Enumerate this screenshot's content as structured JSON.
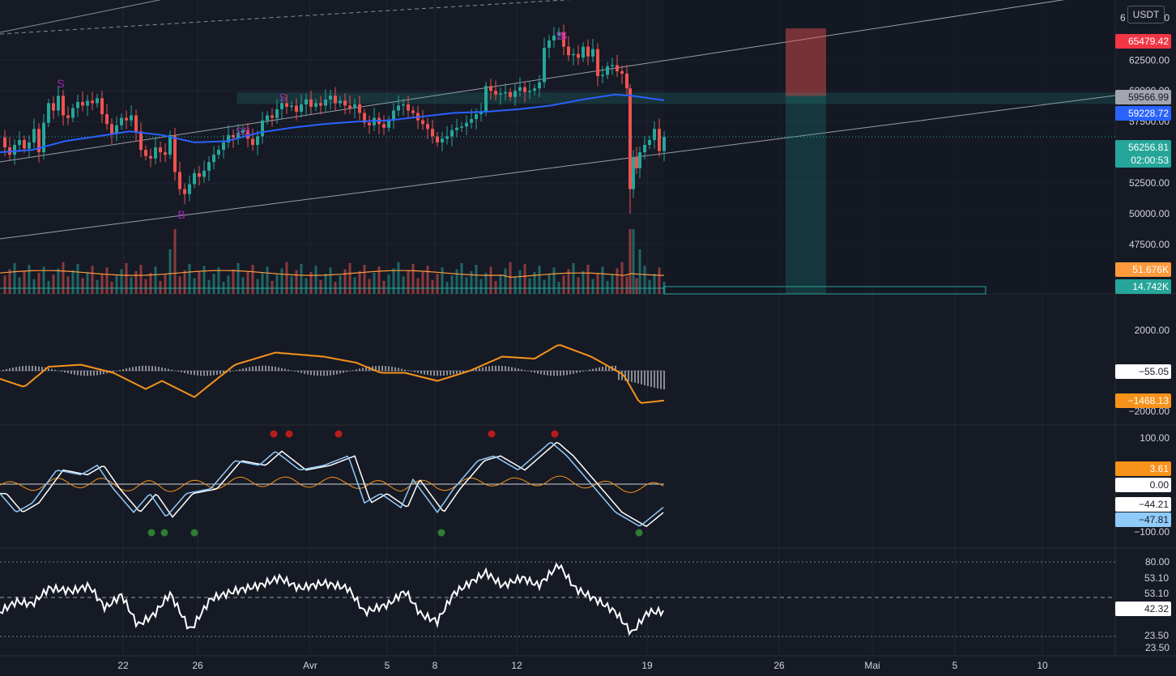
{
  "symbol_quote": "USDT",
  "colors": {
    "background": "#161a25",
    "up": "#26a69a",
    "down": "#ef5350",
    "ma": "#2962ff",
    "volume_ma": "#ff9a3c",
    "macd_signal": "#f7931a",
    "stoch_k": "#90caf9",
    "stoch_d": "#f7931a",
    "rsi": "#ffffff",
    "zone": "#26a69a",
    "label_dark": "#a3a6af"
  },
  "price_tags": {
    "top_partial": "6",
    "top_partial_suffix": "0",
    "stop": "65479.42",
    "gray": "59566.99",
    "ma": "59228.72",
    "last_price": "56256.81",
    "countdown": "02:00:53",
    "vol_ma": "51.676K",
    "vol_last": "14.742K",
    "macd_hist": "−55.05",
    "macd_line": "−1468.13",
    "stoch_signal": "3.61",
    "stoch_zero": "0.00",
    "stoch_d_val": "−44.21",
    "stoch_k_val": "−47.81",
    "rsi_a": "53.10",
    "rsi_b": "53.10",
    "rsi_c": "42.32",
    "rsi_d": "23.50"
  },
  "price_axis": [
    "62500.00",
    "60000.00",
    "57500.00",
    "52500.00",
    "50000.00",
    "47500.00"
  ],
  "macd_axis": [
    "2000.00",
    "−2000.00"
  ],
  "stoch_axis": [
    "100.00",
    "−100.00"
  ],
  "rsi_axis": [
    "80.00",
    "23.50"
  ],
  "time_axis": [
    "22",
    "26",
    "Avr",
    "5",
    "8",
    "12",
    "19",
    "26",
    "Mai",
    "5",
    "10"
  ],
  "markers": {
    "sell": "S",
    "double_sell": "SS",
    "buy": "B"
  },
  "chart_data": {
    "type": "candlestick",
    "title": "",
    "ylim": [
      44000,
      67000
    ],
    "price_points": [
      [
        0,
        56200
      ],
      [
        6,
        55400
      ],
      [
        12,
        54800
      ],
      [
        18,
        55600
      ],
      [
        24,
        56000
      ],
      [
        30,
        55300
      ],
      [
        36,
        55800
      ],
      [
        42,
        56900
      ],
      [
        48,
        55000
      ],
      [
        54,
        57400
      ],
      [
        60,
        59000
      ],
      [
        66,
        58400
      ],
      [
        72,
        59600
      ],
      [
        78,
        58000
      ],
      [
        84,
        57800
      ],
      [
        90,
        58600
      ],
      [
        96,
        59100
      ],
      [
        102,
        58800
      ],
      [
        108,
        59200
      ],
      [
        114,
        59000
      ],
      [
        120,
        59400
      ],
      [
        126,
        58100
      ],
      [
        132,
        57300
      ],
      [
        138,
        56500
      ],
      [
        144,
        57200
      ],
      [
        150,
        57800
      ],
      [
        156,
        57600
      ],
      [
        162,
        58000
      ],
      [
        168,
        56700
      ],
      [
        174,
        55200
      ],
      [
        180,
        54700
      ],
      [
        186,
        54500
      ],
      [
        192,
        55400
      ],
      [
        198,
        55000
      ],
      [
        204,
        54800
      ],
      [
        210,
        56400
      ],
      [
        216,
        53400
      ],
      [
        222,
        52000
      ],
      [
        228,
        51600
      ],
      [
        234,
        52400
      ],
      [
        240,
        53300
      ],
      [
        246,
        53000
      ],
      [
        252,
        53500
      ],
      [
        258,
        54200
      ],
      [
        264,
        54800
      ],
      [
        270,
        55200
      ],
      [
        276,
        55800
      ],
      [
        282,
        56400
      ],
      [
        288,
        56200
      ],
      [
        294,
        56600
      ],
      [
        300,
        56800
      ],
      [
        306,
        56100
      ],
      [
        312,
        55600
      ],
      [
        318,
        56300
      ],
      [
        324,
        57600
      ],
      [
        330,
        58000
      ],
      [
        336,
        57800
      ],
      [
        342,
        58500
      ],
      [
        348,
        59000
      ],
      [
        354,
        58700
      ],
      [
        360,
        58800
      ],
      [
        366,
        58300
      ],
      [
        372,
        58900
      ],
      [
        378,
        59300
      ],
      [
        384,
        58700
      ],
      [
        390,
        59000
      ],
      [
        396,
        58800
      ],
      [
        402,
        59300
      ],
      [
        408,
        59600
      ],
      [
        414,
        59000
      ],
      [
        420,
        59200
      ],
      [
        426,
        58800
      ],
      [
        432,
        58600
      ],
      [
        438,
        58900
      ],
      [
        444,
        58200
      ],
      [
        450,
        57400
      ],
      [
        456,
        57200
      ],
      [
        462,
        57800
      ],
      [
        468,
        57300
      ],
      [
        474,
        57000
      ],
      [
        480,
        57600
      ],
      [
        486,
        58400
      ],
      [
        492,
        58800
      ],
      [
        498,
        58900
      ],
      [
        504,
        58400
      ],
      [
        510,
        58200
      ],
      [
        516,
        57600
      ],
      [
        522,
        57300
      ],
      [
        528,
        56900
      ],
      [
        534,
        56300
      ],
      [
        540,
        55800
      ],
      [
        546,
        56100
      ],
      [
        552,
        56300
      ],
      [
        558,
        56800
      ],
      [
        564,
        57000
      ],
      [
        570,
        57100
      ],
      [
        576,
        57400
      ],
      [
        582,
        57700
      ],
      [
        588,
        58100
      ],
      [
        594,
        58300
      ],
      [
        600,
        60400
      ],
      [
        606,
        60000
      ],
      [
        612,
        59700
      ],
      [
        618,
        59800
      ],
      [
        624,
        59900
      ],
      [
        630,
        59500
      ],
      [
        636,
        60000
      ],
      [
        642,
        60300
      ],
      [
        648,
        59900
      ],
      [
        654,
        60000
      ],
      [
        660,
        60200
      ],
      [
        666,
        60700
      ],
      [
        672,
        63500
      ],
      [
        678,
        64100
      ],
      [
        684,
        64500
      ],
      [
        690,
        64800
      ],
      [
        696,
        63600
      ],
      [
        702,
        62900
      ],
      [
        708,
        63000
      ],
      [
        714,
        62700
      ],
      [
        720,
        63600
      ],
      [
        726,
        62800
      ],
      [
        732,
        63400
      ],
      [
        738,
        61200
      ],
      [
        744,
        61300
      ],
      [
        750,
        62000
      ],
      [
        756,
        62100
      ],
      [
        762,
        61600
      ],
      [
        768,
        61400
      ],
      [
        774,
        60200
      ],
      [
        778,
        52000
      ],
      [
        782,
        54600
      ],
      [
        786,
        53700
      ],
      [
        790,
        55000
      ],
      [
        796,
        55600
      ],
      [
        802,
        56000
      ],
      [
        808,
        56900
      ],
      [
        814,
        55100
      ],
      [
        820,
        56256
      ]
    ],
    "ma_points": [
      [
        0,
        55000
      ],
      [
        40,
        55200
      ],
      [
        80,
        55900
      ],
      [
        120,
        56300
      ],
      [
        160,
        56700
      ],
      [
        200,
        56400
      ],
      [
        240,
        55800
      ],
      [
        280,
        55900
      ],
      [
        320,
        56600
      ],
      [
        360,
        57000
      ],
      [
        400,
        57300
      ],
      [
        440,
        57500
      ],
      [
        480,
        57600
      ],
      [
        520,
        57900
      ],
      [
        560,
        58200
      ],
      [
        600,
        58300
      ],
      [
        640,
        58500
      ],
      [
        680,
        58800
      ],
      [
        720,
        59300
      ],
      [
        760,
        59700
      ],
      [
        780,
        59600
      ],
      [
        820,
        59228
      ]
    ],
    "volume_ma": 51676,
    "volume_last": 14742,
    "stop_level": 65479.42,
    "target_zone": [
      59566.99,
      59228.72
    ],
    "last_price": 56256.81,
    "macd": {
      "line_last": -1468.13,
      "hist_last": -55.05,
      "ylim": [
        -2200,
        2300
      ]
    },
    "stoch": {
      "k_last": -47.81,
      "d_last": -44.21,
      "signal_last": 3.61,
      "ylim": [
        -110,
        115
      ]
    },
    "rsi": {
      "last": 42.32,
      "levels": [
        80.0,
        53.1,
        23.5
      ],
      "ylim": [
        15,
        85
      ]
    }
  }
}
